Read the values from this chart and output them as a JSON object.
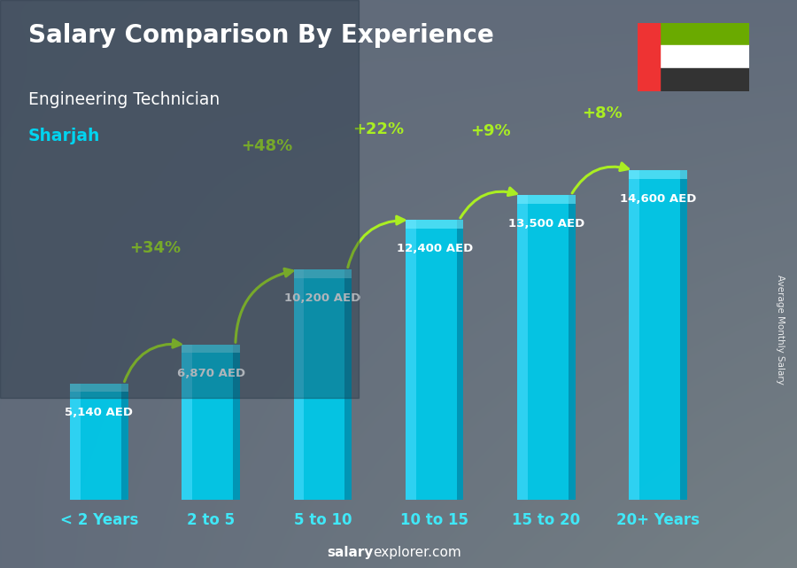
{
  "title": "Salary Comparison By Experience",
  "subtitle": "Engineering Technician",
  "location": "Sharjah",
  "categories": [
    "< 2 Years",
    "2 to 5",
    "5 to 10",
    "10 to 15",
    "15 to 20",
    "20+ Years"
  ],
  "values": [
    5140,
    6870,
    10200,
    12400,
    13500,
    14600
  ],
  "bar_color_face": "#00c8e8",
  "bar_color_left": "#40d8f8",
  "bar_color_right": "#008aaa",
  "bar_color_top": "#20d0f0",
  "pct_labels": [
    "+34%",
    "+48%",
    "+22%",
    "+9%",
    "+8%"
  ],
  "pct_color": "#aaee22",
  "salary_labels": [
    "5,140 AED",
    "6,870 AED",
    "10,200 AED",
    "12,400 AED",
    "13,500 AED",
    "14,600 AED"
  ],
  "footer_salary": "salary",
  "footer_rest": "explorer.com",
  "ylabel": "Average Monthly Salary",
  "bg_color": "#5a6a7a",
  "title_color": "#ffffff",
  "subtitle_color": "#ffffff",
  "location_color": "#00d4f0",
  "salary_label_color": "#ffffff",
  "xtick_color": "#40e8f8",
  "flag_bg": "#888888",
  "flag_green": "#6aaa00",
  "flag_white": "#ffffff",
  "flag_black": "#333333",
  "flag_red": "#ee3333",
  "figsize": [
    9.0,
    6.41
  ],
  "dpi": 100
}
